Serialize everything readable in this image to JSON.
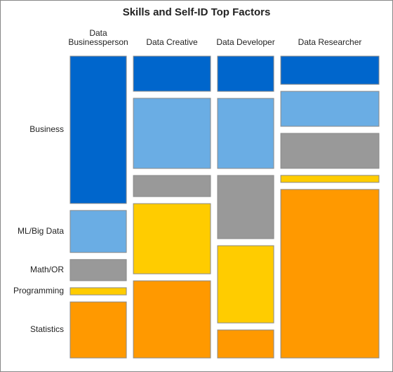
{
  "chart_data": {
    "type": "mosaic",
    "title": "Skills and Self-ID Top Factors",
    "categories": [
      "Data Businessperson",
      "Data Creative",
      "Data Developer",
      "Data Researcher"
    ],
    "series": [
      {
        "name": "Business",
        "color": "#0066cc",
        "values": [
          43.1,
          14.1,
          10.3,
          14.4
        ]
      },
      {
        "name": "ML/Big Data",
        "color": "#6aade4",
        "values": [
          12.3,
          28.2,
          20.5,
          17.9
        ]
      },
      {
        "name": "Math/OR",
        "color": "#999999",
        "values": [
          6.2,
          8.5,
          18.5,
          17.9
        ]
      },
      {
        "name": "Programming",
        "color": "#ffcc00",
        "values": [
          2.1,
          28.2,
          22.6,
          3.6
        ]
      },
      {
        "name": "Statistics",
        "color": "#ff9900",
        "values": [
          16.4,
          31.0,
          8.2,
          86.2
        ]
      }
    ]
  }
}
